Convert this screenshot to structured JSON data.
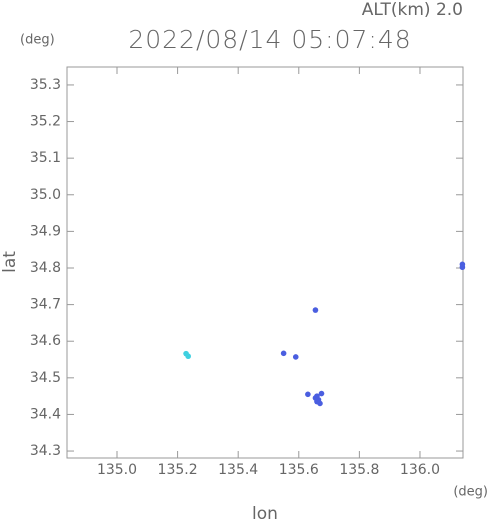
{
  "chart_data": {
    "type": "scatter",
    "title": "2022/08/14 05:07:48",
    "subtitle": "ALT(km) 2.0",
    "y_unit": "(deg)",
    "x_unit": "(deg)",
    "x_label": "lon",
    "y_label": "lat",
    "xlim": [
      134.835,
      136.142
    ],
    "ylim": [
      34.281,
      35.349
    ],
    "xticks": [
      {
        "value": 135,
        "label": "135.0"
      },
      135.2,
      135.4,
      135.6,
      135.8,
      {
        "value": 136,
        "label": "136.0"
      }
    ],
    "yticks": [
      34.3,
      34.4,
      34.5,
      34.6,
      34.7,
      34.8,
      34.9,
      {
        "value": 35,
        "label": "35.0"
      },
      35.1,
      35.2,
      35.3
    ],
    "series": [
      {
        "color": "#3fd0e0",
        "x": [
          135.228,
          135.235
        ],
        "y": [
          34.566,
          34.559
        ]
      },
      {
        "color": "#4a5ee0",
        "x": [
          135.55,
          135.59,
          135.655,
          135.63,
          135.66,
          135.665,
          135.67,
          135.66,
          135.675,
          135.655,
          136.14,
          136.14
        ],
        "y": [
          34.567,
          34.557,
          34.685,
          34.455,
          34.45,
          34.44,
          34.43,
          34.435,
          34.457,
          34.445,
          34.81,
          34.802
        ]
      }
    ]
  }
}
